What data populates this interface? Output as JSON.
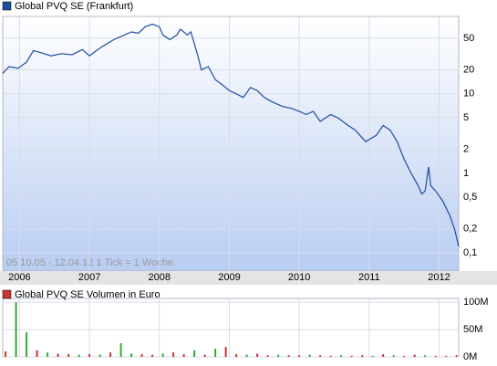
{
  "chart_data": [
    {
      "type": "line",
      "title": "Global PVQ SE (Frankfurt)",
      "annotation": "05.10.05 - 12.04.12   1 Tick = 1 Woche",
      "log_scale": true,
      "grid": true,
      "xlim": [
        2005.76,
        2012.28
      ],
      "xticks": [
        2006,
        2007,
        2008,
        2009,
        2010,
        2011,
        2012
      ],
      "ylim": [
        0.059,
        94
      ],
      "yticks": [
        {
          "value": 0.1,
          "label": "0,1"
        },
        {
          "value": 0.2,
          "label": "0,2"
        },
        {
          "value": 0.5,
          "label": "0,5"
        },
        1,
        2,
        5,
        10,
        20,
        50
      ],
      "series": [
        {
          "name": "Global PVQ SE (Frankfurt)",
          "color": "#1f4e9c",
          "x": [
            2005.76,
            2005.85,
            2005.98,
            2006.1,
            2006.2,
            2006.3,
            2006.45,
            2006.6,
            2006.75,
            2006.9,
            2007.0,
            2007.1,
            2007.2,
            2007.35,
            2007.5,
            2007.6,
            2007.7,
            2007.8,
            2007.9,
            2008.0,
            2008.05,
            2008.15,
            2008.25,
            2008.3,
            2008.4,
            2008.45,
            2008.55,
            2008.6,
            2008.7,
            2008.8,
            2008.9,
            2009.0,
            2009.1,
            2009.2,
            2009.3,
            2009.4,
            2009.5,
            2009.6,
            2009.75,
            2009.9,
            2010.0,
            2010.1,
            2010.2,
            2010.3,
            2010.45,
            2010.55,
            2010.7,
            2010.8,
            2010.95,
            2011.1,
            2011.2,
            2011.3,
            2011.4,
            2011.5,
            2011.6,
            2011.7,
            2011.75,
            2011.8,
            2011.85,
            2011.88,
            2011.95,
            2012.05,
            2012.15,
            2012.22,
            2012.28
          ],
          "values": [
            18,
            22,
            21,
            25,
            35,
            33,
            30,
            32,
            31,
            36,
            30,
            35,
            40,
            48,
            55,
            60,
            58,
            70,
            75,
            70,
            55,
            48,
            55,
            65,
            55,
            60,
            30,
            20,
            22,
            15,
            13,
            11,
            10,
            9,
            12,
            11,
            9,
            8,
            7,
            6.5,
            6,
            5.5,
            6,
            4.5,
            5.5,
            5,
            4,
            3.5,
            2.5,
            3,
            4,
            3.5,
            2.5,
            1.5,
            1,
            0.7,
            0.55,
            0.6,
            1.2,
            0.7,
            0.6,
            0.45,
            0.3,
            0.2,
            0.12
          ]
        }
      ]
    },
    {
      "type": "bar",
      "title": "Global PVQ SE Volumen in Euro",
      "legend_color": "#cc3333",
      "grid": true,
      "xlim": [
        2005.76,
        2012.28
      ],
      "xticks": [
        2006,
        2007,
        2008,
        2009,
        2010,
        2011,
        2012
      ],
      "ylim": [
        0,
        107
      ],
      "yticks": [
        {
          "value": 0,
          "label": "0M"
        },
        {
          "value": 50,
          "label": "50M"
        },
        {
          "value": 100,
          "label": "100M"
        }
      ],
      "x": [
        2005.8,
        2005.95,
        2006.1,
        2006.25,
        2006.4,
        2006.55,
        2006.7,
        2006.85,
        2007.0,
        2007.15,
        2007.3,
        2007.45,
        2007.6,
        2007.75,
        2007.9,
        2008.05,
        2008.2,
        2008.35,
        2008.5,
        2008.65,
        2008.8,
        2008.95,
        2009.1,
        2009.25,
        2009.4,
        2009.55,
        2009.7,
        2009.85,
        2010.0,
        2010.15,
        2010.3,
        2010.45,
        2010.6,
        2010.75,
        2010.9,
        2011.05,
        2011.2,
        2011.35,
        2011.5,
        2011.65,
        2011.8,
        2011.95,
        2012.1,
        2012.25
      ],
      "values": [
        10,
        100,
        45,
        12,
        8,
        6,
        5,
        4,
        5,
        4,
        8,
        25,
        6,
        5,
        4,
        6,
        8,
        5,
        12,
        4,
        15,
        18,
        5,
        4,
        6,
        3,
        4,
        3,
        3,
        4,
        3,
        2,
        3,
        2,
        3,
        2,
        5,
        3,
        2,
        4,
        3,
        2,
        2,
        3
      ],
      "colors": [
        "#cc3333",
        "#33aa33",
        "#33aa33",
        "#cc3333",
        "#33aa33",
        "#cc3333",
        "#cc3333",
        "#33aa33",
        "#cc3333",
        "#33aa33",
        "#cc3333",
        "#33aa33",
        "#33aa33",
        "#cc3333",
        "#cc3333",
        "#33aa33",
        "#cc3333",
        "#cc3333",
        "#33aa33",
        "#cc3333",
        "#33aa33",
        "#cc3333",
        "#cc3333",
        "#33aa33",
        "#cc3333",
        "#cc3333",
        "#33aa33",
        "#cc3333",
        "#cc3333",
        "#33aa33",
        "#cc3333",
        "#cc3333",
        "#33aa33",
        "#cc3333",
        "#cc3333",
        "#33aa33",
        "#cc3333",
        "#33aa33",
        "#cc3333",
        "#cc3333",
        "#33aa33",
        "#cc3333",
        "#cc3333",
        "#cc3333"
      ]
    }
  ]
}
